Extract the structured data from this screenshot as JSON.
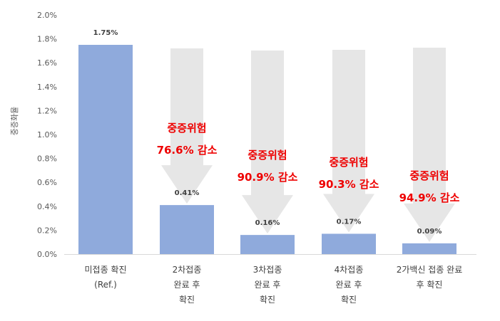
{
  "chart_data": {
    "type": "bar",
    "ylabel": "중증화율",
    "ylim": [
      0,
      2.0
    ],
    "yticks": [
      "0.0%",
      "0.2%",
      "0.4%",
      "0.6%",
      "0.8%",
      "1.0%",
      "1.2%",
      "1.4%",
      "1.6%",
      "1.8%",
      "2.0%"
    ],
    "categories": [
      [
        "미접종 확진",
        "(Ref.)"
      ],
      [
        "2차접종",
        "완료 후",
        "확진"
      ],
      [
        "3차접종",
        "완료 후",
        "확진"
      ],
      [
        "4차접종",
        "완료 후",
        "확진"
      ],
      [
        "2가백신 접종 완료",
        "후 확진"
      ]
    ],
    "values": [
      1.75,
      0.41,
      0.16,
      0.17,
      0.09
    ],
    "data_labels": [
      "1.75%",
      "0.41%",
      "0.16%",
      "0.17%",
      "0.09%"
    ],
    "annotations": [
      null,
      [
        "중증위험",
        "76.6% 감소"
      ],
      [
        "중증위험",
        "90.9% 감소"
      ],
      [
        "중증위험",
        "90.3% 감소"
      ],
      [
        "중증위험",
        "94.9% 감소"
      ]
    ],
    "grid": false,
    "legend": "none",
    "colors": {
      "bar": "#8faadc",
      "arrow": "#e6e6e6",
      "annotation": "#ee0000"
    }
  }
}
